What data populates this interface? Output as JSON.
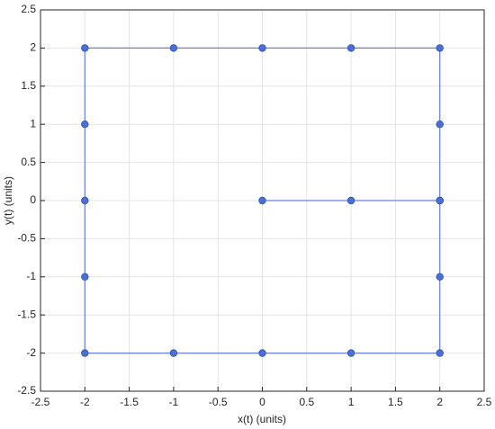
{
  "chart_data": {
    "type": "line",
    "xlabel": "x(t) (units)",
    "ylabel": "y(t) (units)",
    "series": [
      {
        "color": "#6a7fe0",
        "marker_color": "#4a6fd6",
        "x": [
          0,
          1,
          2,
          2,
          2,
          1,
          0,
          -1,
          -2,
          -2,
          -2,
          -2,
          -2,
          -1,
          0,
          1,
          2,
          2,
          2
        ],
        "values": [
          0,
          0,
          0,
          1,
          2,
          2,
          2,
          2,
          2,
          1,
          0,
          -1,
          -2,
          -2,
          -2,
          -2,
          -2,
          -1,
          0
        ]
      }
    ],
    "xlim": [
      -2.5,
      2.5
    ],
    "ylim": [
      -2.5,
      2.5
    ],
    "xticks": [
      -2.5,
      -2,
      -1.5,
      -1,
      -0.5,
      0,
      0.5,
      1,
      1.5,
      2,
      2.5
    ],
    "yticks": [
      -2.5,
      -2,
      -1.5,
      -1,
      -0.5,
      0,
      0.5,
      1,
      1.5,
      2,
      2.5
    ],
    "grid": true
  }
}
